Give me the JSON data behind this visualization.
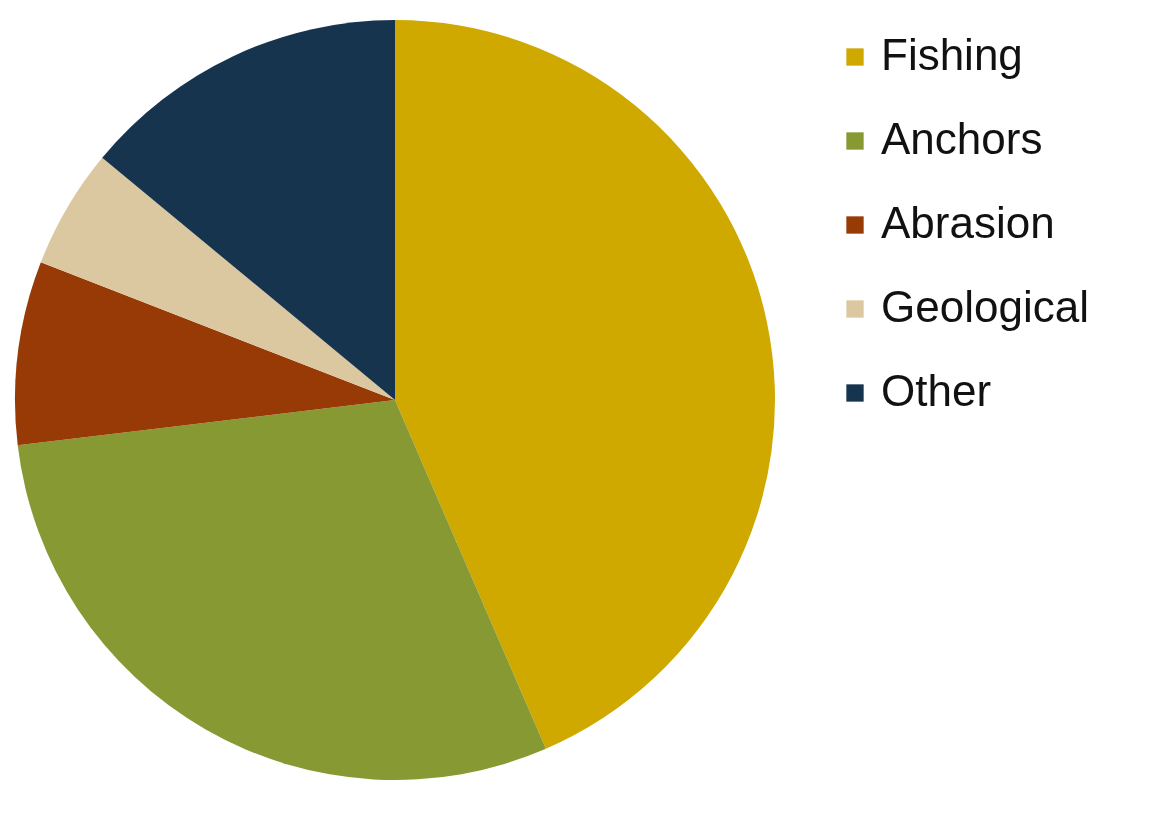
{
  "chart_data": {
    "type": "pie",
    "categories": [
      "Fishing",
      "Anchors",
      "Abrasion",
      "Geological",
      "Other"
    ],
    "values": [
      43.5,
      29.6,
      7.8,
      5.1,
      14.0
    ],
    "colors": [
      "#cfa800",
      "#869932",
      "#973a06",
      "#dcc8a0",
      "#17344f"
    ],
    "legend": "right"
  }
}
